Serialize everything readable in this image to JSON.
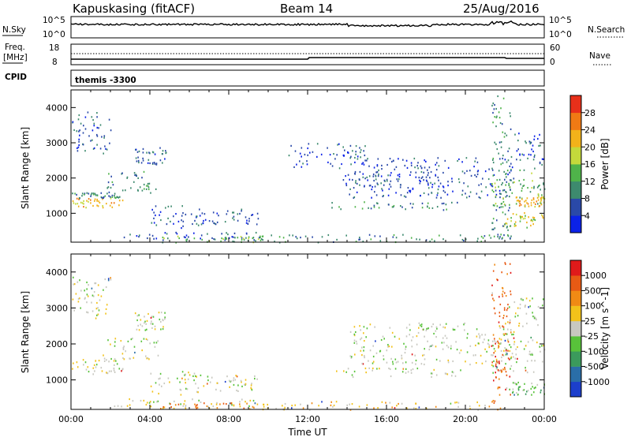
{
  "header": {
    "station": "Kapuskasing (fitACF)",
    "beam": "Beam 14",
    "date": "25/Aug/2016"
  },
  "top_panels": {
    "nsky_label": "N.Sky",
    "nsearch_label": "N.Search",
    "nsky_ticks": [
      "10^5",
      "10^0"
    ],
    "nsearch_ticks": [
      "10^5",
      "10^0"
    ],
    "freq_label_line1": "Freq.",
    "freq_label_line2": "[MHz]",
    "freq_ticks": [
      "18",
      "8"
    ],
    "nave_label": "Nave",
    "nave_ticks": [
      "60",
      "0"
    ],
    "cpid_label": "CPID",
    "cpid_value": "themis -3300"
  },
  "colors": {
    "power_scale": [
      "#0b22e8",
      "#2a49a8",
      "#3d8a6e",
      "#4fb34a",
      "#c4d93b",
      "#f2b21a",
      "#f07a14",
      "#e8301a"
    ],
    "velocity_scale": [
      "#1c3fcc",
      "#2a6ea8",
      "#3b9a5c",
      "#58c23a",
      "#c8c8c0",
      "#f2c21a",
      "#f08a14",
      "#e85a14",
      "#e01a1a"
    ]
  },
  "chart_data": [
    {
      "type": "heatmap",
      "panel": "power",
      "ylabel": "Slant Range [km]",
      "xlabel": "",
      "xlim": [
        "00:00",
        "24:00"
      ],
      "ylim": [
        180,
        4500
      ],
      "yticks": [
        "1000",
        "2000",
        "3000",
        "4000"
      ],
      "colorbar_label": "Power [dB]",
      "colorbar_ticks": [
        "4",
        "8",
        "12",
        "16",
        "20",
        "24",
        "28"
      ],
      "regions": [
        {
          "t0": 0.0,
          "t1": 2.6,
          "r0": 1180,
          "r1": 1450,
          "level": 5
        },
        {
          "t0": 0.0,
          "t1": 2.6,
          "r0": 1450,
          "r1": 1600,
          "level": 2
        },
        {
          "t0": 1.6,
          "t1": 4.4,
          "r0": 1600,
          "r1": 2200,
          "level": 2
        },
        {
          "t0": 3.2,
          "t1": 4.8,
          "r0": 2400,
          "r1": 2900,
          "level": 1
        },
        {
          "t0": 0.0,
          "t1": 2.0,
          "r0": 2700,
          "r1": 3900,
          "level": 1
        },
        {
          "t0": 2.0,
          "t1": 9.6,
          "r0": 250,
          "r1": 500,
          "level": 1
        },
        {
          "t0": 4.5,
          "t1": 9.8,
          "r0": 190,
          "r1": 380,
          "level": 3
        },
        {
          "t0": 6.6,
          "t1": 9.5,
          "r0": 700,
          "r1": 1150,
          "level": 1
        },
        {
          "t0": 4.0,
          "t1": 6.6,
          "r0": 600,
          "r1": 1250,
          "level": 1
        },
        {
          "t0": 9.5,
          "t1": 22.0,
          "r0": 190,
          "r1": 420,
          "level": 2
        },
        {
          "t0": 13.2,
          "t1": 19.8,
          "r0": 1100,
          "r1": 1350,
          "level": 2
        },
        {
          "t0": 13.5,
          "t1": 18.5,
          "r0": 1800,
          "r1": 2200,
          "level": 1
        },
        {
          "t0": 14.0,
          "t1": 22.5,
          "r0": 1450,
          "r1": 2600,
          "level": 1
        },
        {
          "t0": 11.0,
          "t1": 15.0,
          "r0": 2300,
          "r1": 3000,
          "level": 1
        },
        {
          "t0": 21.3,
          "t1": 24.0,
          "r0": 1200,
          "r1": 2300,
          "level": 3
        },
        {
          "t0": 22.5,
          "t1": 24.0,
          "r0": 1200,
          "r1": 1500,
          "level": 5
        },
        {
          "t0": 21.8,
          "t1": 24.0,
          "r0": 600,
          "r1": 1050,
          "level": 4
        },
        {
          "t0": 22.0,
          "t1": 24.0,
          "r0": 2400,
          "r1": 3300,
          "level": 1
        },
        {
          "t0": 21.3,
          "t1": 22.3,
          "r0": 300,
          "r1": 4400,
          "level": 2
        }
      ]
    },
    {
      "type": "heatmap",
      "panel": "velocity",
      "ylabel": "Slant Range [km]",
      "xlabel": "Time UT",
      "xlim": [
        "00:00",
        "24:00"
      ],
      "ylim": [
        180,
        4500
      ],
      "xticks": [
        "00:00",
        "04:00",
        "08:00",
        "12:00",
        "16:00",
        "20:00",
        "00:00"
      ],
      "yticks": [
        "1000",
        "2000",
        "3000",
        "4000"
      ],
      "colorbar_label": "Velocity [m s^-1]",
      "colorbar_ticks": [
        "1000",
        "500",
        "100",
        "25",
        "-25",
        "-100",
        "-500",
        "-1000"
      ],
      "regions": [
        {
          "t0": 0.0,
          "t1": 2.6,
          "r0": 1180,
          "r1": 1600,
          "level": 4
        },
        {
          "t0": 1.6,
          "t1": 4.4,
          "r0": 1600,
          "r1": 2200,
          "level": 4
        },
        {
          "t0": 3.2,
          "t1": 4.8,
          "r0": 2400,
          "r1": 2900,
          "level": 4
        },
        {
          "t0": 0.0,
          "t1": 2.0,
          "r0": 2700,
          "r1": 3900,
          "level": 4
        },
        {
          "t0": 2.0,
          "t1": 9.6,
          "r0": 250,
          "r1": 500,
          "level": 4
        },
        {
          "t0": 4.5,
          "t1": 9.8,
          "r0": 190,
          "r1": 380,
          "level": 6
        },
        {
          "t0": 6.6,
          "t1": 9.5,
          "r0": 700,
          "r1": 1150,
          "level": 4
        },
        {
          "t0": 4.0,
          "t1": 6.6,
          "r0": 600,
          "r1": 1250,
          "level": 4
        },
        {
          "t0": 9.5,
          "t1": 22.0,
          "r0": 190,
          "r1": 420,
          "level": 5
        },
        {
          "t0": 13.2,
          "t1": 19.8,
          "r0": 1100,
          "r1": 1350,
          "level": 4
        },
        {
          "t0": 14.0,
          "t1": 22.5,
          "r0": 1450,
          "r1": 2600,
          "level": 4
        },
        {
          "t0": 21.3,
          "t1": 24.0,
          "r0": 1200,
          "r1": 2300,
          "level": 4
        },
        {
          "t0": 22.0,
          "t1": 24.0,
          "r0": 600,
          "r1": 950,
          "level": 3
        },
        {
          "t0": 22.0,
          "t1": 24.0,
          "r0": 2400,
          "r1": 3300,
          "level": 4
        },
        {
          "t0": 21.3,
          "t1": 22.3,
          "r0": 300,
          "r1": 4400,
          "level": 7
        }
      ]
    }
  ]
}
